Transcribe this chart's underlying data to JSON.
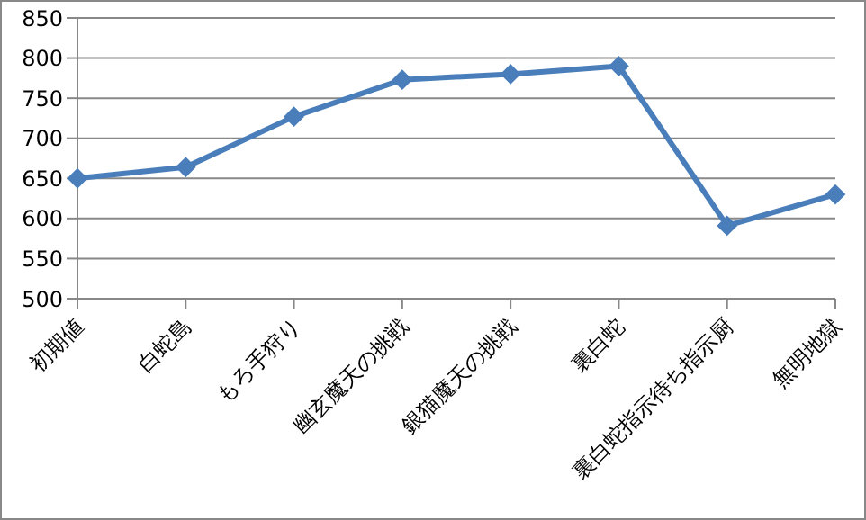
{
  "chart_data": {
    "type": "line",
    "categories": [
      "初期値",
      "白蛇島",
      "もろ手狩り",
      "幽玄魔天の挑戦",
      "銀猫魔天の挑戦",
      "裏白蛇",
      "裏白蛇指示待ち指示厨",
      "無明地獄"
    ],
    "series": [
      {
        "color": "#4a7ebb",
        "values": [
          650,
          664,
          727,
          773,
          780,
          790,
          591,
          630
        ]
      }
    ],
    "ylim": [
      500,
      850
    ],
    "yticks": [
      500,
      550,
      600,
      650,
      700,
      750,
      800,
      850
    ],
    "grid": "y",
    "marker": "diamond",
    "line_style": "solid",
    "legend": false
  }
}
